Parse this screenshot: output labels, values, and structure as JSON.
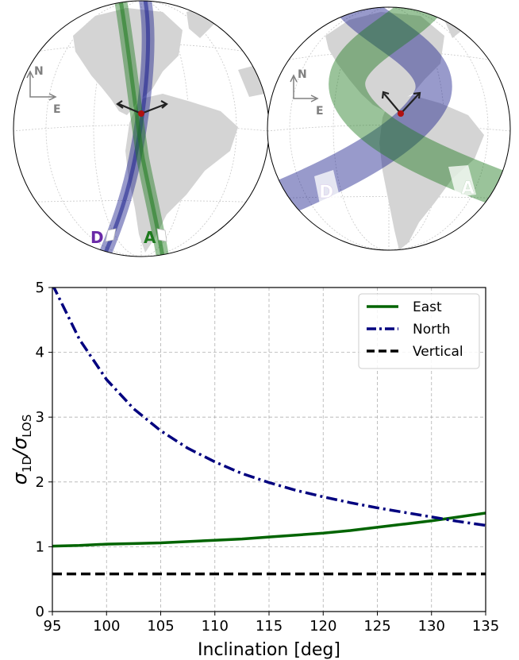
{
  "maps": [
    {
      "compass": {
        "north": "N",
        "east": "E"
      },
      "tracks": [
        {
          "label": "D",
          "color": "#1a1f8c",
          "label_color": "#6a2aa8"
        },
        {
          "label": "A",
          "color": "#1e7a1e",
          "label_color": "#1e7a1e"
        }
      ]
    },
    {
      "compass": {
        "north": "N",
        "east": "E"
      },
      "tracks": [
        {
          "label": "D",
          "color": "#1a1f8c",
          "label_color": "#ffffff"
        },
        {
          "label": "A",
          "color": "#1e7a1e",
          "label_color": "#ffffff"
        }
      ]
    }
  ],
  "chart_data": {
    "type": "line",
    "xlabel": "Inclination [deg]",
    "ylabel": "σ_1D/σ_LOS",
    "xlim": [
      95,
      135
    ],
    "ylim": [
      0,
      5
    ],
    "xticks": [
      95,
      100,
      105,
      110,
      115,
      120,
      125,
      130,
      135
    ],
    "yticks": [
      0,
      1,
      2,
      3,
      4,
      5
    ],
    "grid": true,
    "legend_position": "top-right",
    "x": [
      95,
      97.5,
      100,
      102.5,
      105,
      107.5,
      110,
      112.5,
      115,
      117.5,
      120,
      122.5,
      125,
      127.5,
      130,
      132.5,
      135
    ],
    "series": [
      {
        "name": "East",
        "color": "#006400",
        "style": "solid",
        "values": [
          1.01,
          1.02,
          1.04,
          1.05,
          1.06,
          1.08,
          1.1,
          1.12,
          1.15,
          1.18,
          1.21,
          1.25,
          1.3,
          1.35,
          1.4,
          1.46,
          1.52
        ]
      },
      {
        "name": "North",
        "color": "#00007f",
        "style": "dashdot",
        "values": [
          5.05,
          4.2,
          3.58,
          3.13,
          2.79,
          2.52,
          2.31,
          2.13,
          1.99,
          1.87,
          1.77,
          1.68,
          1.6,
          1.53,
          1.46,
          1.39,
          1.33
        ]
      },
      {
        "name": "Vertical",
        "color": "#000000",
        "style": "dashed",
        "values": [
          0.58,
          0.58,
          0.58,
          0.58,
          0.58,
          0.58,
          0.58,
          0.58,
          0.58,
          0.58,
          0.58,
          0.58,
          0.58,
          0.58,
          0.58,
          0.58,
          0.58
        ]
      }
    ]
  }
}
